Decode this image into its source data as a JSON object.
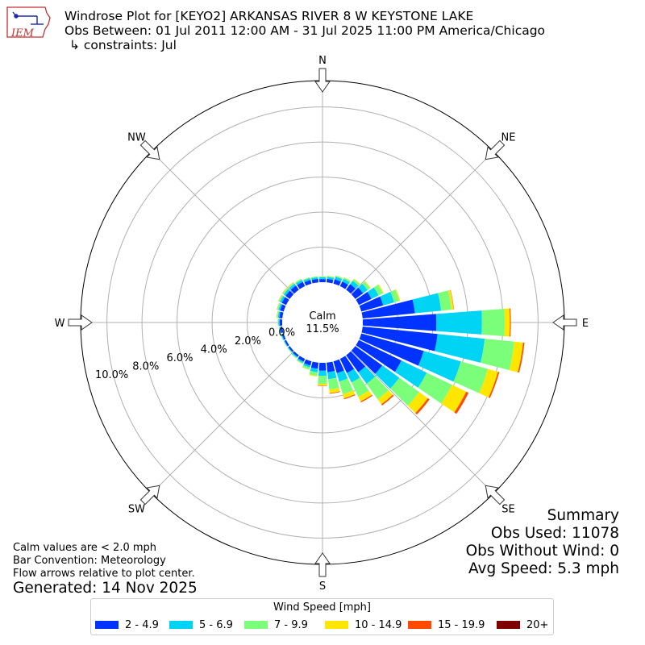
{
  "logo": {
    "text": "IEM"
  },
  "header": {
    "title": "Windrose Plot for [KEYO2] ARKANSAS RIVER 8 W KEYSTONE LAKE",
    "obs_between": "Obs Between: 01 Jul 2011 12:00 AM - 31 Jul 2025 11:00 PM America/Chicago",
    "constraints": "↳ constraints: Jul"
  },
  "summary": {
    "heading": "Summary",
    "obs_used": "Obs Used: 11078",
    "obs_without_wind": "Obs Without Wind: 0",
    "avg_speed": "Avg Speed: 5.3 mph"
  },
  "notes": {
    "calm": "Calm values are < 2.0 mph",
    "bar_convention": "Bar Convention: Meteorology",
    "flow_arrows": "Flow arrows relative to plot center."
  },
  "generated": "Generated: 14 Nov 2025",
  "chart_data": {
    "type": "windrose",
    "calm_label": "Calm",
    "calm_value": "11.5%",
    "calm_percent": 11.5,
    "rmax": 11.5,
    "rings": [
      0,
      2,
      4,
      6,
      8,
      10
    ],
    "ring_labels": [
      "0.0%",
      "2.0%",
      "4.0%",
      "6.0%",
      "8.0%",
      "10.0%"
    ],
    "compass": [
      "N",
      "NE",
      "E",
      "SE",
      "S",
      "SW",
      "W",
      "NW"
    ],
    "legend_title": "Wind Speed [mph]",
    "speed_bins": [
      {
        "label": "2 - 4.9",
        "color": "#0033ff"
      },
      {
        "label": "5 - 6.9",
        "color": "#00d4f5"
      },
      {
        "label": "7 - 9.9",
        "color": "#7bff7b"
      },
      {
        "label": "10 - 14.9",
        "color": "#ffe600"
      },
      {
        "label": "15 - 19.9",
        "color": "#ff4a00"
      },
      {
        "label": "20+",
        "color": "#800000"
      }
    ],
    "directions": [
      0,
      10,
      20,
      30,
      40,
      50,
      60,
      70,
      80,
      90,
      100,
      110,
      120,
      130,
      140,
      150,
      160,
      170,
      180,
      190,
      200,
      210,
      220,
      230,
      240,
      250,
      260,
      270,
      280,
      290,
      300,
      310,
      320,
      330,
      340,
      350
    ],
    "bins": [
      [
        0.18,
        0.1,
        0.05,
        0.0,
        0.0,
        0.0
      ],
      [
        0.2,
        0.12,
        0.05,
        0.01,
        0.0,
        0.0
      ],
      [
        0.26,
        0.16,
        0.06,
        0.01,
        0.0,
        0.0
      ],
      [
        0.3,
        0.17,
        0.08,
        0.02,
        0.0,
        0.0
      ],
      [
        0.4,
        0.24,
        0.12,
        0.03,
        0.0,
        0.0
      ],
      [
        0.55,
        0.32,
        0.18,
        0.04,
        0.0,
        0.0
      ],
      [
        0.8,
        0.45,
        0.28,
        0.05,
        0.0,
        0.0
      ],
      [
        1.3,
        0.65,
        0.3,
        0.06,
        0.0,
        0.0
      ],
      [
        3.0,
        1.5,
        0.6,
        0.12,
        0.02,
        0.0
      ],
      [
        4.2,
        2.6,
        1.3,
        0.3,
        0.05,
        0.0
      ],
      [
        4.3,
        2.7,
        1.7,
        0.5,
        0.08,
        0.0
      ],
      [
        3.7,
        2.2,
        1.6,
        0.6,
        0.08,
        0.0
      ],
      [
        2.7,
        1.6,
        1.6,
        0.9,
        0.15,
        0.0
      ],
      [
        1.9,
        1.2,
        1.4,
        0.6,
        0.12,
        0.0
      ],
      [
        1.2,
        0.8,
        1.1,
        0.35,
        0.08,
        0.0
      ],
      [
        0.9,
        0.6,
        0.9,
        0.3,
        0.06,
        0.0
      ],
      [
        0.7,
        0.5,
        0.75,
        0.25,
        0.05,
        0.0
      ],
      [
        0.55,
        0.4,
        0.6,
        0.2,
        0.04,
        0.0
      ],
      [
        0.45,
        0.3,
        0.45,
        0.1,
        0.02,
        0.0
      ],
      [
        0.35,
        0.2,
        0.2,
        0.05,
        0.0,
        0.0
      ],
      [
        0.25,
        0.12,
        0.12,
        0.02,
        0.0,
        0.0
      ],
      [
        0.18,
        0.08,
        0.06,
        0.01,
        0.0,
        0.0
      ],
      [
        0.12,
        0.06,
        0.05,
        0.0,
        0.0,
        0.0
      ],
      [
        0.1,
        0.04,
        0.04,
        0.0,
        0.0,
        0.0
      ],
      [
        0.1,
        0.04,
        0.03,
        0.0,
        0.0,
        0.0
      ],
      [
        0.1,
        0.05,
        0.03,
        0.0,
        0.0,
        0.0
      ],
      [
        0.12,
        0.05,
        0.03,
        0.01,
        0.0,
        0.0
      ],
      [
        0.15,
        0.06,
        0.04,
        0.01,
        0.0,
        0.0
      ],
      [
        0.18,
        0.08,
        0.05,
        0.02,
        0.01,
        0.0
      ],
      [
        0.22,
        0.1,
        0.06,
        0.02,
        0.01,
        0.0
      ],
      [
        0.28,
        0.12,
        0.07,
        0.03,
        0.01,
        0.0
      ],
      [
        0.3,
        0.13,
        0.07,
        0.03,
        0.01,
        0.0
      ],
      [
        0.3,
        0.13,
        0.07,
        0.03,
        0.01,
        0.0
      ],
      [
        0.28,
        0.12,
        0.06,
        0.02,
        0.0,
        0.0
      ],
      [
        0.22,
        0.11,
        0.05,
        0.01,
        0.0,
        0.0
      ],
      [
        0.2,
        0.1,
        0.05,
        0.01,
        0.0,
        0.0
      ]
    ]
  }
}
